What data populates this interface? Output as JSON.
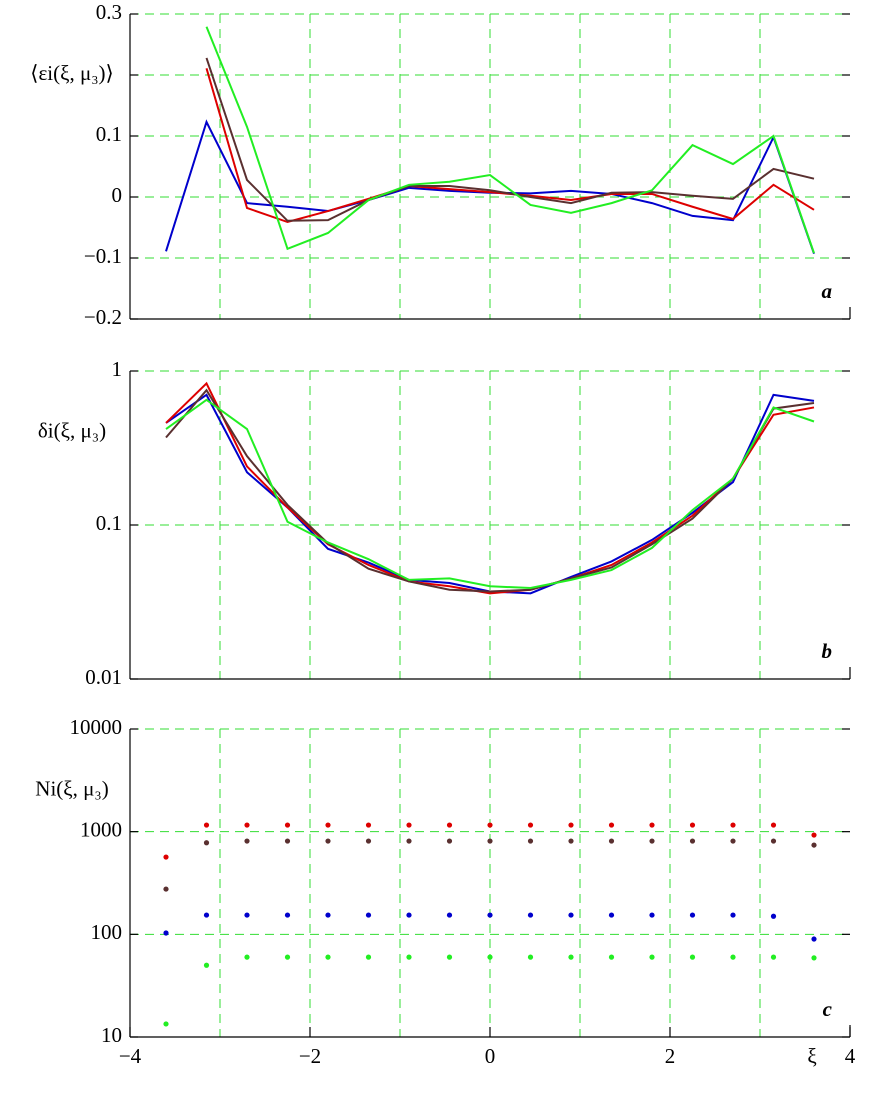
{
  "chart_data": [
    {
      "type": "line",
      "ylabel": "⟨εi(ξ, μ₃)⟩",
      "annotation": "a",
      "x": [
        -3.6,
        -3.15,
        -2.7,
        -2.25,
        -1.8,
        -1.35,
        -0.9,
        -0.45,
        0,
        0.45,
        0.9,
        1.35,
        1.8,
        2.25,
        2.7,
        3.15,
        3.6
      ],
      "xlim": [
        -4,
        4
      ],
      "xgrid": [
        -3,
        -2,
        -1,
        0,
        1,
        2,
        3
      ],
      "ylim": [
        -0.2,
        0.3
      ],
      "yticks": [
        {
          "value": -0.2,
          "label": "−0.2"
        },
        {
          "value": -0.1,
          "label": "−0.1"
        },
        0,
        0.1,
        {
          "value": 0.2,
          "label": null
        },
        0.3
      ],
      "grid": true,
      "series": [
        {
          "color": "#0000cc",
          "values": [
            -0.089,
            0.123,
            -0.01,
            -0.016,
            -0.023,
            -0.005,
            0.015,
            0.01,
            0.007,
            0.006,
            0.01,
            0.005,
            -0.01,
            -0.031,
            -0.038,
            0.098,
            -0.093
          ]
        },
        {
          "color": "#dd0000",
          "values": [
            null,
            0.211,
            -0.018,
            -0.041,
            -0.023,
            -0.003,
            0.018,
            0.013,
            0.008,
            0.002,
            -0.005,
            0.005,
            0.005,
            -0.016,
            -0.036,
            0.02,
            -0.021
          ]
        },
        {
          "color": "#5a3030",
          "values": [
            null,
            0.228,
            0.028,
            -0.039,
            -0.038,
            -0.005,
            0.018,
            0.018,
            0.011,
            0,
            -0.01,
            0.007,
            0.008,
            0.002,
            -0.003,
            0.046,
            0.03
          ]
        },
        {
          "color": "#22ee22",
          "values": [
            null,
            0.279,
            0.115,
            -0.085,
            -0.059,
            -0.005,
            0.02,
            0.025,
            0.036,
            -0.013,
            -0.026,
            -0.01,
            0.011,
            0.085,
            0.054,
            0.1,
            -0.092
          ]
        }
      ]
    },
    {
      "type": "line",
      "log_y": true,
      "ylabel": "δi(ξ, μ₃)",
      "annotation": "b",
      "x": [
        -3.6,
        -3.15,
        -2.7,
        -2.25,
        -1.8,
        -1.35,
        -0.9,
        -0.45,
        0,
        0.45,
        0.9,
        1.35,
        1.8,
        2.25,
        2.7,
        3.15,
        3.6
      ],
      "xlim": [
        -4,
        4
      ],
      "xgrid": [
        -3,
        -2,
        -1,
        0,
        1,
        2,
        3
      ],
      "ylim": [
        0.01,
        1
      ],
      "yticks": [
        0.01,
        0.1,
        1
      ],
      "grid": true,
      "series": [
        {
          "color": "#0000cc",
          "values": [
            0.46,
            0.7,
            0.22,
            0.13,
            0.07,
            0.057,
            0.044,
            0.042,
            0.037,
            0.036,
            0.046,
            0.058,
            0.08,
            0.12,
            0.19,
            0.7,
            0.64
          ]
        },
        {
          "color": "#dd0000",
          "values": [
            0.46,
            0.83,
            0.24,
            0.13,
            0.075,
            0.055,
            0.043,
            0.04,
            0.036,
            0.038,
            0.045,
            0.055,
            0.077,
            0.115,
            0.2,
            0.52,
            0.58
          ]
        },
        {
          "color": "#5a3030",
          "values": [
            0.37,
            0.75,
            0.28,
            0.135,
            0.076,
            0.052,
            0.043,
            0.038,
            0.037,
            0.038,
            0.045,
            0.053,
            0.075,
            0.11,
            0.2,
            0.57,
            0.62
          ]
        },
        {
          "color": "#22ee22",
          "values": [
            0.42,
            0.65,
            0.42,
            0.105,
            0.077,
            0.06,
            0.044,
            0.045,
            0.04,
            0.039,
            0.044,
            0.051,
            0.071,
            0.125,
            0.2,
            0.58,
            0.47
          ]
        }
      ]
    },
    {
      "type": "scatter",
      "log_y": true,
      "ylabel": "Ni(ξ, μ₃)",
      "annotation": "c",
      "xlabel": "ξ",
      "x": [
        -3.6,
        -3.15,
        -2.7,
        -2.25,
        -1.8,
        -1.35,
        -0.9,
        -0.45,
        0,
        0.45,
        0.9,
        1.35,
        1.8,
        2.25,
        2.7,
        3.15,
        3.6
      ],
      "xlim": [
        -4,
        4
      ],
      "xgrid": [
        -3,
        -2,
        -1,
        0,
        1,
        2,
        3
      ],
      "xticks": [
        {
          "value": -4,
          "label": "−4"
        },
        {
          "value": -2,
          "label": "−2"
        },
        0,
        2,
        4
      ],
      "ylim": [
        10,
        10000
      ],
      "yticks": [
        10,
        100,
        1000,
        10000
      ],
      "grid": true,
      "series": [
        {
          "color": "#dd0000",
          "values": [
            566,
            1160,
            1160,
            1160,
            1160,
            1160,
            1160,
            1160,
            1160,
            1160,
            1160,
            1160,
            1160,
            1160,
            1160,
            1160,
            927
          ]
        },
        {
          "color": "#5a3030",
          "values": [
            276,
            780,
            810,
            810,
            810,
            810,
            810,
            810,
            810,
            810,
            810,
            810,
            810,
            810,
            810,
            810,
            740
          ]
        },
        {
          "color": "#0000cc",
          "values": [
            103,
            154,
            154,
            154,
            154,
            154,
            154,
            154,
            154,
            154,
            154,
            154,
            154,
            154,
            154,
            150,
            90
          ]
        },
        {
          "color": "#22ee22",
          "values": [
            13.4,
            50,
            60,
            60,
            60,
            60,
            60,
            60,
            60,
            60,
            60,
            60,
            60,
            60,
            60,
            60,
            59
          ]
        }
      ]
    }
  ]
}
